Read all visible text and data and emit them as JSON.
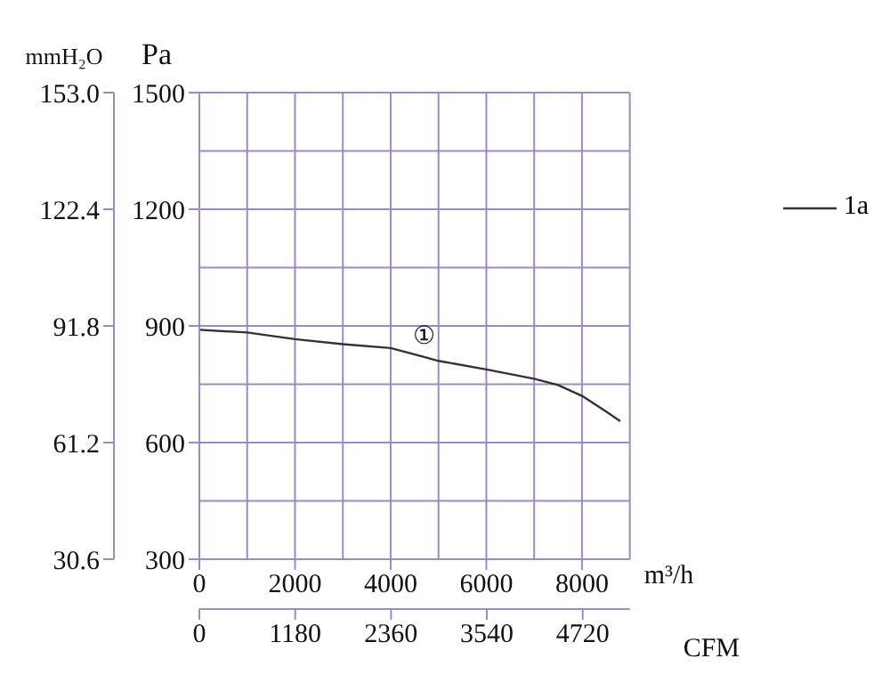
{
  "chart_data": {
    "type": "line",
    "ylabel": "Pa",
    "y2label": "mmH₂O",
    "xlabel": "m³/h",
    "x2label": "CFM",
    "x": [
      0,
      1000,
      2000,
      3000,
      4000,
      4700,
      5000,
      6000,
      7000,
      7500,
      8000,
      8500,
      8800
    ],
    "series": [
      {
        "name": "1a",
        "color": "#333333",
        "values": [
          890,
          883,
          866,
          853,
          843,
          820,
          810,
          788,
          764,
          748,
          720,
          680,
          655
        ]
      }
    ],
    "xlim": [
      0,
      9000
    ],
    "xticks": [
      0,
      2000,
      4000,
      6000,
      8000
    ],
    "x2lim": [
      0,
      5300
    ],
    "x2ticks": [
      0,
      1180,
      2360,
      3540,
      4720
    ],
    "ylim": [
      300,
      1500
    ],
    "yticks": [
      300,
      600,
      900,
      1200,
      1500
    ],
    "y2lim": [
      30.6,
      153.0
    ],
    "y2ticks": [
      {
        "value": 30.6,
        "label": "30.6"
      },
      {
        "value": 61.2,
        "label": "61.2"
      },
      {
        "value": 91.8,
        "label": "91.8"
      },
      {
        "value": 122.4,
        "label": "122.4"
      },
      {
        "value": 153.0,
        "label": "153.0"
      }
    ],
    "annotations": [
      {
        "text": "①",
        "x": 4700,
        "y": 820
      }
    ],
    "grid": true,
    "legend": "right",
    "marker": "none",
    "line_style": "solid"
  }
}
